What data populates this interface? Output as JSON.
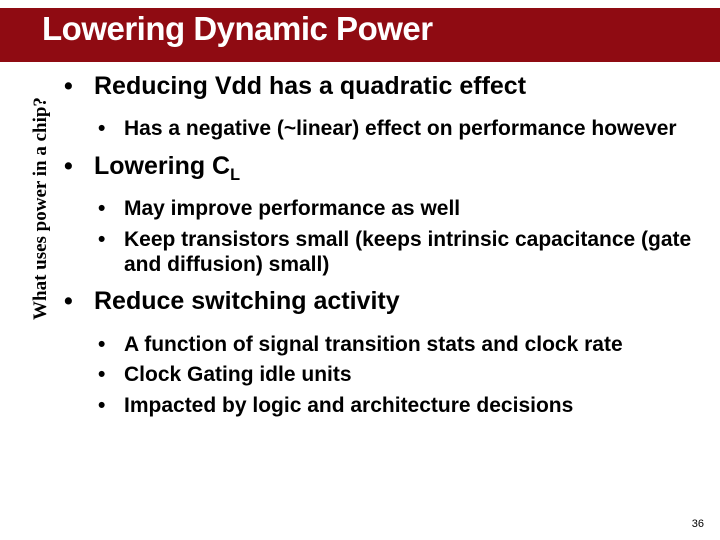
{
  "title": "Lowering Dynamic Power",
  "sidebar_label": "What uses power in a chip?",
  "page_number": "36",
  "colors": {
    "title_bar": "#8f0b12",
    "background": "#ffffff",
    "text": "#000000"
  },
  "typography": {
    "title_fontsize": 33,
    "lvl1_fontsize": 25,
    "lvl2_fontsize": 21,
    "sidebar_fontsize": 19,
    "pagenum_fontsize": 11
  },
  "bullets": [
    {
      "text_pre": "Reducing Vdd has a quadratic effect",
      "sub": "",
      "text_post": "",
      "children": [
        {
          "text": "Has a negative (~linear) effect on performance however"
        }
      ]
    },
    {
      "text_pre": "Lowering C",
      "sub": "L",
      "text_post": "",
      "children": [
        {
          "text": "May improve performance as well"
        },
        {
          "text": "Keep transistors small (keeps intrinsic capacitance (gate and diffusion) small)"
        }
      ]
    },
    {
      "text_pre": "Reduce switching activity",
      "sub": "",
      "text_post": "",
      "children": [
        {
          "text": "A function of signal transition stats and clock rate"
        },
        {
          "text": "Clock Gating idle units"
        },
        {
          "text": "Impacted by logic and architecture decisions"
        }
      ]
    }
  ]
}
